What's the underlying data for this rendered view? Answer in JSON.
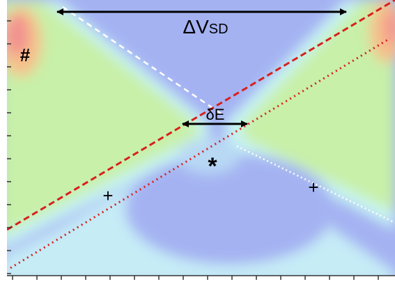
{
  "labels": {
    "delta_vsd": {
      "main": "ΔV",
      "sub": "SD"
    },
    "delta_e": "δE",
    "hash": "#",
    "star": "*",
    "plus_left": "+",
    "plus_right": "+"
  }
}
